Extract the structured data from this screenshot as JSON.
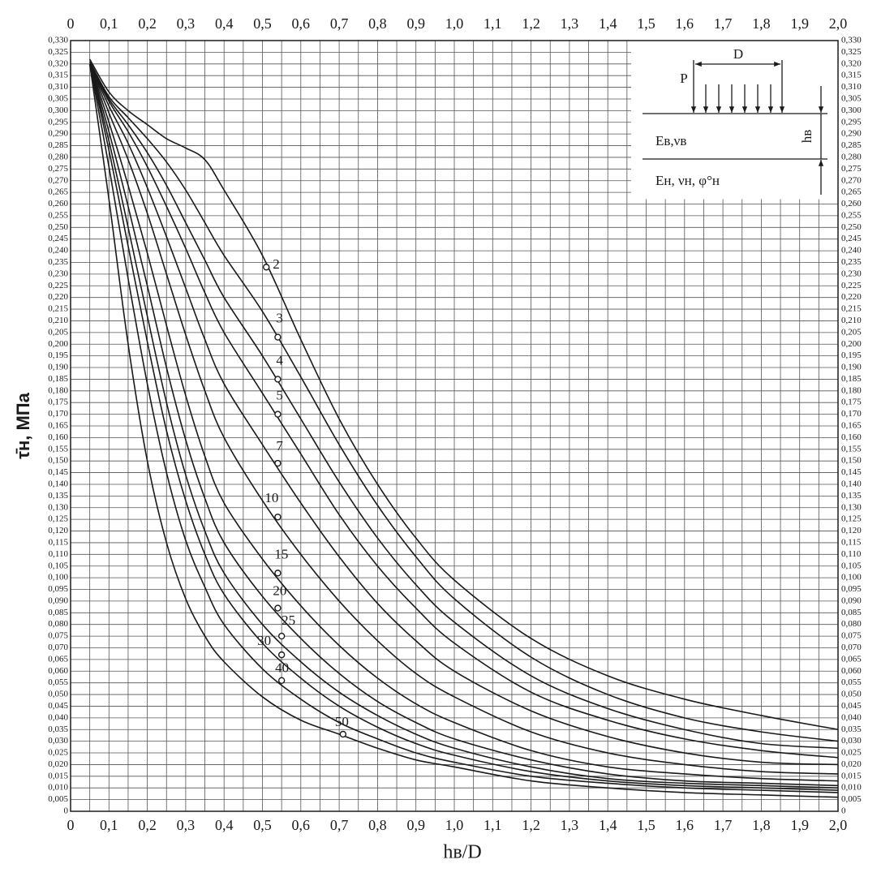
{
  "chart_data": {
    "type": "line",
    "xlabel": "hв/D",
    "ylabel": "τ̄н, МПа",
    "color": "#1a1a1a",
    "grid": true,
    "xlim": [
      0,
      2.0
    ],
    "ylim": [
      0,
      0.33
    ],
    "xticks": [
      0,
      {
        "value": 0.1,
        "label": "0,1"
      },
      {
        "value": 0.2,
        "label": "0,2"
      },
      {
        "value": 0.3,
        "label": "0,3"
      },
      {
        "value": 0.4,
        "label": "0,4"
      },
      {
        "value": 0.5,
        "label": "0,5"
      },
      {
        "value": 0.6,
        "label": "0,6"
      },
      {
        "value": 0.7,
        "label": "0,7"
      },
      {
        "value": 0.8,
        "label": "0,8"
      },
      {
        "value": 0.9,
        "label": "0,9"
      },
      {
        "value": 1.0,
        "label": "1,0"
      },
      {
        "value": 1.1,
        "label": "1,1"
      },
      {
        "value": 1.2,
        "label": "1,2"
      },
      {
        "value": 1.3,
        "label": "1,3"
      },
      {
        "value": 1.4,
        "label": "1,4"
      },
      {
        "value": 1.5,
        "label": "1,5"
      },
      {
        "value": 1.6,
        "label": "1,6"
      },
      {
        "value": 1.7,
        "label": "1,7"
      },
      {
        "value": 1.8,
        "label": "1,8"
      },
      {
        "value": 1.9,
        "label": "1,9"
      },
      {
        "value": 2.0,
        "label": "2,0"
      }
    ],
    "xminorticks": [
      0.05,
      0.15,
      0.25,
      0.35,
      0.45,
      0.55,
      0.65,
      0.75,
      0.85,
      0.95,
      1.05,
      1.15,
      1.25,
      1.35,
      1.45,
      1.55,
      1.65,
      1.75,
      1.85,
      1.95
    ],
    "yticks": [
      0,
      {
        "value": 0.005,
        "label": "0,005"
      },
      {
        "value": 0.01,
        "label": "0,010"
      },
      {
        "value": 0.015,
        "label": "0,015"
      },
      {
        "value": 0.02,
        "label": "0,020"
      },
      {
        "value": 0.025,
        "label": "0,025"
      },
      {
        "value": 0.03,
        "label": "0,030"
      },
      {
        "value": 0.035,
        "label": "0,035"
      },
      {
        "value": 0.04,
        "label": "0,040"
      },
      {
        "value": 0.045,
        "label": "0,045"
      },
      {
        "value": 0.05,
        "label": "0,050"
      },
      {
        "value": 0.055,
        "label": "0,055"
      },
      {
        "value": 0.06,
        "label": "0,060"
      },
      {
        "value": 0.065,
        "label": "0,065"
      },
      {
        "value": 0.07,
        "label": "0,070"
      },
      {
        "value": 0.075,
        "label": "0,075"
      },
      {
        "value": 0.08,
        "label": "0,080"
      },
      {
        "value": 0.085,
        "label": "0,085"
      },
      {
        "value": 0.09,
        "label": "0,090"
      },
      {
        "value": 0.095,
        "label": "0,095"
      },
      {
        "value": 0.1,
        "label": "0,100"
      },
      {
        "value": 0.105,
        "label": "0,105"
      },
      {
        "value": 0.11,
        "label": "0,110"
      },
      {
        "value": 0.115,
        "label": "0,115"
      },
      {
        "value": 0.12,
        "label": "0,120"
      },
      {
        "value": 0.125,
        "label": "0,125"
      },
      {
        "value": 0.13,
        "label": "0,130"
      },
      {
        "value": 0.135,
        "label": "0,135"
      },
      {
        "value": 0.14,
        "label": "0,140"
      },
      {
        "value": 0.145,
        "label": "0,145"
      },
      {
        "value": 0.15,
        "label": "0,150"
      },
      {
        "value": 0.155,
        "label": "0,155"
      },
      {
        "value": 0.16,
        "label": "0,160"
      },
      {
        "value": 0.165,
        "label": "0,165"
      },
      {
        "value": 0.17,
        "label": "0,170"
      },
      {
        "value": 0.175,
        "label": "0,175"
      },
      {
        "value": 0.18,
        "label": "0,180"
      },
      {
        "value": 0.185,
        "label": "0,185"
      },
      {
        "value": 0.19,
        "label": "0,190"
      },
      {
        "value": 0.195,
        "label": "0,195"
      },
      {
        "value": 0.2,
        "label": "0,200"
      },
      {
        "value": 0.205,
        "label": "0,205"
      },
      {
        "value": 0.21,
        "label": "0,210"
      },
      {
        "value": 0.215,
        "label": "0,215"
      },
      {
        "value": 0.22,
        "label": "0,220"
      },
      {
        "value": 0.225,
        "label": "0,225"
      },
      {
        "value": 0.23,
        "label": "0,230"
      },
      {
        "value": 0.235,
        "label": "0,235"
      },
      {
        "value": 0.24,
        "label": "0,240"
      },
      {
        "value": 0.245,
        "label": "0,245"
      },
      {
        "value": 0.25,
        "label": "0,250"
      },
      {
        "value": 0.255,
        "label": "0,255"
      },
      {
        "value": 0.26,
        "label": "0,260"
      },
      {
        "value": 0.265,
        "label": "0,265"
      },
      {
        "value": 0.27,
        "label": "0,270"
      },
      {
        "value": 0.275,
        "label": "0,275"
      },
      {
        "value": 0.28,
        "label": "0,280"
      },
      {
        "value": 0.285,
        "label": "0,285"
      },
      {
        "value": 0.29,
        "label": "0,290"
      },
      {
        "value": 0.295,
        "label": "0,295"
      },
      {
        "value": 0.3,
        "label": "0,300"
      },
      {
        "value": 0.305,
        "label": "0,305"
      },
      {
        "value": 0.31,
        "label": "0,310"
      },
      {
        "value": 0.315,
        "label": "0,315"
      },
      {
        "value": 0.32,
        "label": "0,320"
      },
      {
        "value": 0.325,
        "label": "0,325"
      },
      {
        "value": 0.33,
        "label": "0,330"
      }
    ],
    "x": [
      0.05,
      0.1,
      0.15,
      0.2,
      0.25,
      0.3,
      0.35,
      0.4,
      0.5,
      0.6,
      0.7,
      0.8,
      0.9,
      1.0,
      1.2,
      1.4,
      1.6,
      1.8,
      2.0
    ],
    "series": [
      {
        "name": "2",
        "values": [
          0.322,
          0.308,
          0.3,
          0.294,
          0.288,
          0.284,
          0.279,
          0.266,
          0.238,
          0.202,
          0.168,
          0.14,
          0.117,
          0.099,
          0.074,
          0.058,
          0.048,
          0.041,
          0.035
        ],
        "marker": {
          "x": 0.51,
          "y": 0.233
        }
      },
      {
        "name": "3",
        "values": [
          0.321,
          0.306,
          0.297,
          0.288,
          0.278,
          0.266,
          0.252,
          0.238,
          0.214,
          0.186,
          0.157,
          0.131,
          0.109,
          0.091,
          0.066,
          0.05,
          0.04,
          0.034,
          0.03
        ],
        "marker": {
          "x": 0.54,
          "y": 0.203
        }
      },
      {
        "name": "4",
        "values": [
          0.32,
          0.305,
          0.294,
          0.282,
          0.268,
          0.252,
          0.236,
          0.22,
          0.195,
          0.168,
          0.141,
          0.117,
          0.097,
          0.081,
          0.058,
          0.044,
          0.035,
          0.029,
          0.027
        ],
        "marker": {
          "x": 0.54,
          "y": 0.185
        }
      },
      {
        "name": "5",
        "values": [
          0.32,
          0.304,
          0.291,
          0.276,
          0.259,
          0.241,
          0.222,
          0.205,
          0.179,
          0.153,
          0.127,
          0.105,
          0.087,
          0.072,
          0.051,
          0.039,
          0.031,
          0.026,
          0.023
        ],
        "marker": {
          "x": 0.54,
          "y": 0.17
        }
      },
      {
        "name": "7",
        "values": [
          0.32,
          0.302,
          0.286,
          0.267,
          0.246,
          0.224,
          0.202,
          0.183,
          0.157,
          0.132,
          0.109,
          0.089,
          0.073,
          0.06,
          0.043,
          0.032,
          0.025,
          0.021,
          0.02
        ],
        "marker": {
          "x": 0.54,
          "y": 0.149
        }
      },
      {
        "name": "10",
        "values": [
          0.32,
          0.299,
          0.279,
          0.256,
          0.23,
          0.204,
          0.18,
          0.16,
          0.133,
          0.11,
          0.09,
          0.073,
          0.059,
          0.049,
          0.034,
          0.025,
          0.02,
          0.017,
          0.016
        ],
        "marker": {
          "x": 0.54,
          "y": 0.126
        }
      },
      {
        "name": "15",
        "values": [
          0.32,
          0.295,
          0.268,
          0.239,
          0.208,
          0.178,
          0.152,
          0.132,
          0.108,
          0.088,
          0.071,
          0.057,
          0.046,
          0.038,
          0.026,
          0.019,
          0.016,
          0.014,
          0.013
        ],
        "marker": {
          "x": 0.54,
          "y": 0.102
        }
      },
      {
        "name": "20",
        "values": [
          0.32,
          0.291,
          0.259,
          0.225,
          0.19,
          0.159,
          0.134,
          0.115,
          0.092,
          0.074,
          0.059,
          0.047,
          0.038,
          0.031,
          0.022,
          0.016,
          0.013,
          0.012,
          0.011
        ],
        "marker": {
          "x": 0.54,
          "y": 0.087
        }
      },
      {
        "name": "25",
        "values": [
          0.32,
          0.287,
          0.25,
          0.212,
          0.175,
          0.144,
          0.12,
          0.102,
          0.08,
          0.064,
          0.051,
          0.041,
          0.033,
          0.027,
          0.019,
          0.014,
          0.012,
          0.011,
          0.01
        ],
        "marker": {
          "x": 0.55,
          "y": 0.075
        }
      },
      {
        "name": "30",
        "values": [
          0.32,
          0.283,
          0.242,
          0.201,
          0.163,
          0.133,
          0.11,
          0.093,
          0.072,
          0.057,
          0.045,
          0.036,
          0.029,
          0.024,
          0.017,
          0.013,
          0.011,
          0.01,
          0.009
        ],
        "marker": {
          "x": 0.55,
          "y": 0.067
        }
      },
      {
        "name": "40",
        "values": [
          0.32,
          0.276,
          0.228,
          0.183,
          0.145,
          0.116,
          0.096,
          0.08,
          0.061,
          0.048,
          0.038,
          0.031,
          0.025,
          0.021,
          0.015,
          0.012,
          0.01,
          0.009,
          0.008
        ],
        "marker": {
          "x": 0.55,
          "y": 0.056
        }
      },
      {
        "name": "50",
        "values": [
          0.32,
          0.262,
          0.2,
          0.15,
          0.115,
          0.091,
          0.075,
          0.064,
          0.049,
          0.039,
          0.033,
          0.027,
          0.022,
          0.019,
          0.013,
          0.01,
          0.008,
          0.007,
          0.006
        ],
        "marker": {
          "x": 0.71,
          "y": 0.033
        }
      }
    ],
    "inset": {
      "load": "P",
      "diameter": "D",
      "upper_layer": "Eв,νв",
      "lower_layer": "Eн, νн, φ°н",
      "thickness": "hв"
    }
  }
}
